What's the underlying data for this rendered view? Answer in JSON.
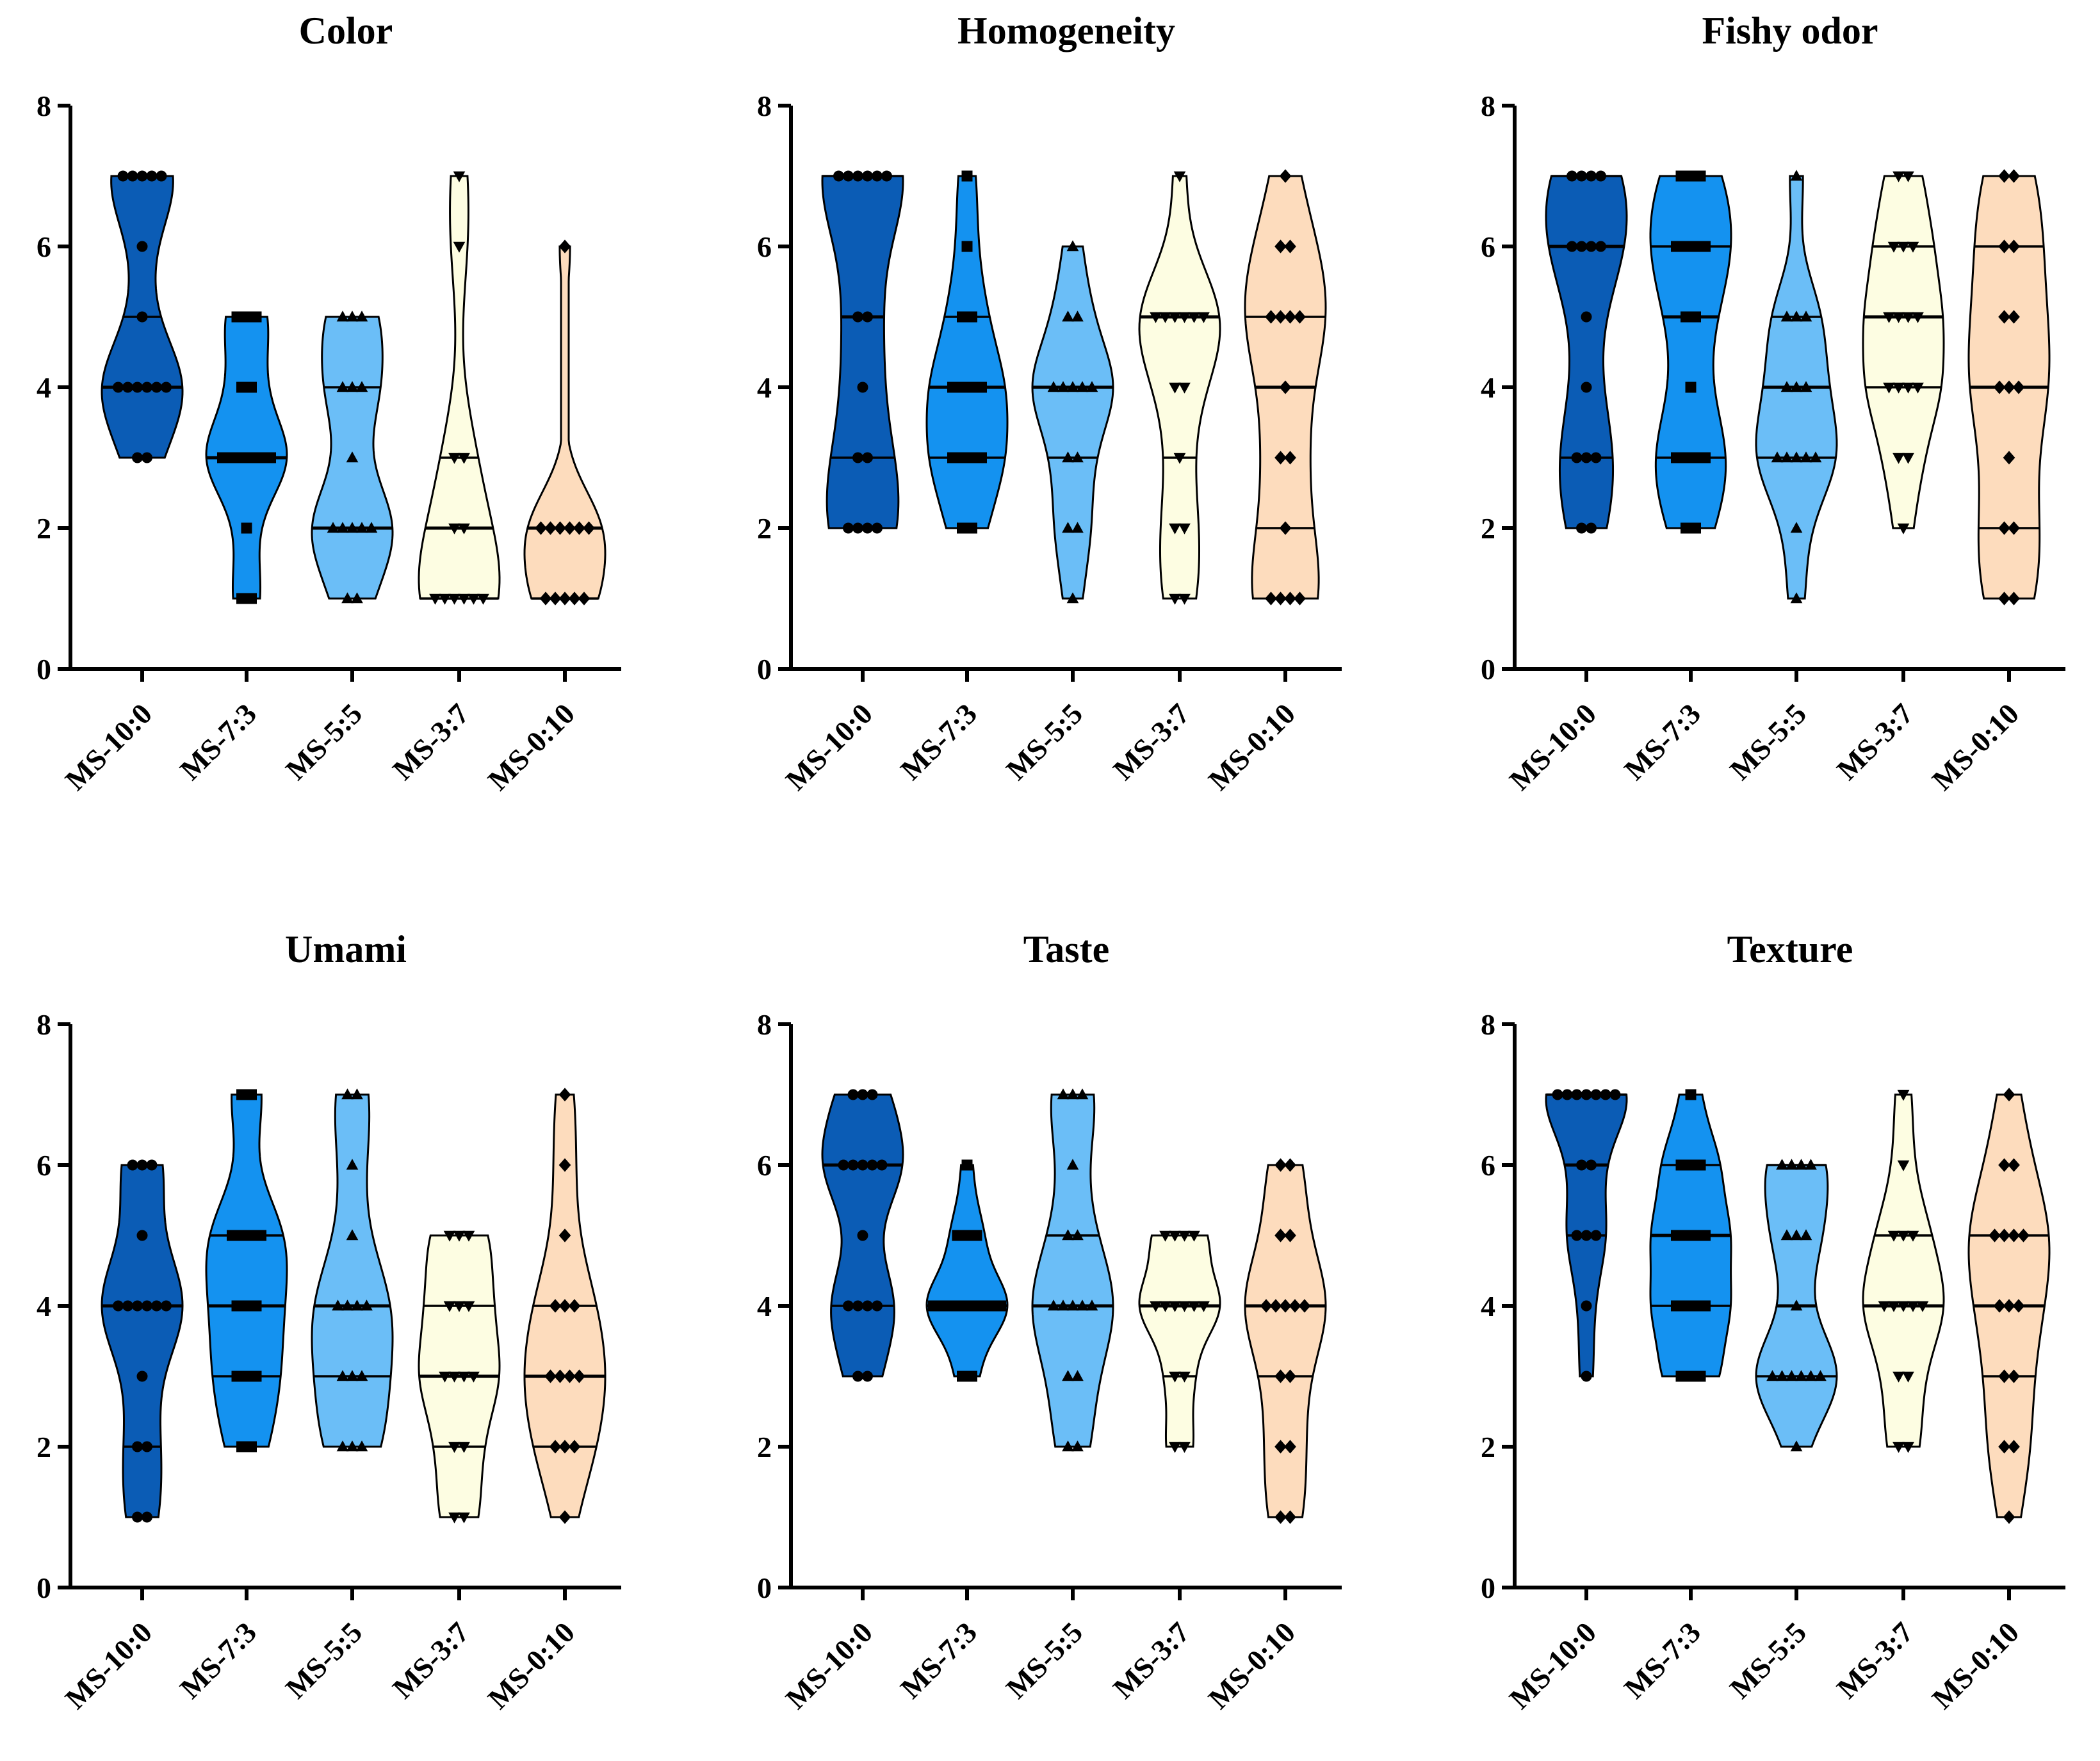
{
  "chart_data": {
    "type": "violin",
    "ylim": [
      0,
      8
    ],
    "yticks": [
      0,
      2,
      4,
      6,
      8
    ],
    "categories": [
      "MS-10:0",
      "MS-7:3",
      "MS-5:5",
      "MS-3:7",
      "MS-0:10"
    ],
    "colors": [
      "#0b5cb5",
      "#1492f0",
      "#6bbef7",
      "#fdfde2",
      "#fddcbd"
    ],
    "markers": [
      "circle",
      "square",
      "triangle-up",
      "triangle-down",
      "diamond"
    ],
    "panels": [
      {
        "title": "Color",
        "series": [
          {
            "name": "MS-10:0",
            "values": [
              7,
              7,
              7,
              7,
              7,
              6,
              5,
              4,
              4,
              4,
              4,
              4,
              4,
              3,
              3
            ],
            "q1": 4,
            "median": 4,
            "q3": 5
          },
          {
            "name": "MS-7:3",
            "values": [
              5,
              5,
              5,
              4,
              4,
              3,
              3,
              3,
              3,
              3,
              3,
              2,
              1,
              1
            ],
            "q1": 3,
            "median": 3,
            "q3": 3
          },
          {
            "name": "MS-5:5",
            "values": [
              5,
              5,
              5,
              4,
              4,
              4,
              3,
              2,
              2,
              2,
              2,
              2,
              1,
              1
            ],
            "q1": 2,
            "median": 2,
            "q3": 4
          },
          {
            "name": "MS-3:7",
            "values": [
              7,
              6,
              3,
              3,
              2,
              2,
              1,
              1,
              1,
              1,
              1,
              1
            ],
            "q1": 1,
            "median": 2,
            "q3": 3
          },
          {
            "name": "MS-0:10",
            "values": [
              6,
              2,
              2,
              2,
              2,
              2,
              2,
              1,
              1,
              1,
              1,
              1
            ],
            "q1": 1,
            "median": 2,
            "q3": 2
          }
        ]
      },
      {
        "title": "Homogeneity",
        "series": [
          {
            "name": "MS-10:0",
            "values": [
              7,
              7,
              7,
              7,
              7,
              7,
              5,
              5,
              4,
              3,
              3,
              2,
              2,
              2,
              2
            ],
            "q1": 3,
            "median": 5,
            "q3": 7
          },
          {
            "name": "MS-7:3",
            "values": [
              7,
              6,
              5,
              5,
              4,
              4,
              4,
              4,
              3,
              3,
              3,
              3,
              2,
              2
            ],
            "q1": 3,
            "median": 4,
            "q3": 5
          },
          {
            "name": "MS-5:5",
            "values": [
              6,
              5,
              5,
              4,
              4,
              4,
              4,
              4,
              3,
              3,
              2,
              2,
              1
            ],
            "q1": 3,
            "median": 4,
            "q3": 4
          },
          {
            "name": "MS-3:7",
            "values": [
              7,
              5,
              5,
              5,
              5,
              5,
              5,
              4,
              4,
              3,
              2,
              2,
              1,
              1
            ],
            "q1": 3,
            "median": 5,
            "q3": 5
          },
          {
            "name": "MS-0:10",
            "values": [
              7,
              6,
              6,
              5,
              5,
              5,
              5,
              4,
              3,
              3,
              2,
              1,
              1,
              1,
              1
            ],
            "q1": 2,
            "median": 4,
            "q3": 5
          }
        ]
      },
      {
        "title": "Fishy odor",
        "series": [
          {
            "name": "MS-10:0",
            "values": [
              7,
              7,
              7,
              7,
              6,
              6,
              6,
              6,
              5,
              4,
              3,
              3,
              3,
              2,
              2
            ],
            "q1": 3,
            "median": 6,
            "q3": 7
          },
          {
            "name": "MS-7:3",
            "values": [
              7,
              7,
              7,
              6,
              6,
              6,
              6,
              5,
              5,
              4,
              3,
              3,
              3,
              3,
              2,
              2
            ],
            "q1": 3,
            "median": 5,
            "q3": 6
          },
          {
            "name": "MS-5:5",
            "values": [
              7,
              5,
              5,
              5,
              4,
              4,
              4,
              3,
              3,
              3,
              3,
              3,
              2,
              1
            ],
            "q1": 3,
            "median": 4,
            "q3": 5
          },
          {
            "name": "MS-3:7",
            "values": [
              7,
              7,
              6,
              6,
              6,
              5,
              5,
              5,
              5,
              4,
              4,
              4,
              4,
              3,
              3,
              2
            ],
            "q1": 4,
            "median": 5,
            "q3": 6
          },
          {
            "name": "MS-0:10",
            "values": [
              7,
              7,
              6,
              6,
              5,
              5,
              4,
              4,
              4,
              3,
              2,
              2,
              1,
              1
            ],
            "q1": 2,
            "median": 4,
            "q3": 6
          }
        ]
      },
      {
        "title": "Umami",
        "series": [
          {
            "name": "MS-10:0",
            "values": [
              6,
              6,
              6,
              5,
              4,
              4,
              4,
              4,
              4,
              4,
              3,
              2,
              2,
              1,
              1
            ],
            "q1": 2,
            "median": 4,
            "q3": 4
          },
          {
            "name": "MS-7:3",
            "values": [
              7,
              7,
              5,
              5,
              5,
              5,
              4,
              4,
              4,
              3,
              3,
              3,
              2,
              2
            ],
            "q1": 3,
            "median": 4,
            "q3": 5
          },
          {
            "name": "MS-5:5",
            "values": [
              7,
              7,
              6,
              5,
              4,
              4,
              4,
              4,
              3,
              3,
              3,
              2,
              2,
              2
            ],
            "q1": 3,
            "median": 4,
            "q3": 4
          },
          {
            "name": "MS-3:7",
            "values": [
              5,
              5,
              5,
              4,
              4,
              4,
              3,
              3,
              3,
              3,
              2,
              2,
              1,
              1
            ],
            "q1": 2,
            "median": 3,
            "q3": 4
          },
          {
            "name": "MS-0:10",
            "values": [
              7,
              6,
              5,
              4,
              4,
              4,
              3,
              3,
              3,
              3,
              2,
              2,
              2,
              1
            ],
            "q1": 2,
            "median": 3,
            "q3": 4
          }
        ]
      },
      {
        "title": "Taste",
        "series": [
          {
            "name": "MS-10:0",
            "values": [
              7,
              7,
              7,
              6,
              6,
              6,
              6,
              6,
              5,
              4,
              4,
              4,
              4,
              3,
              3
            ],
            "q1": 4,
            "median": 6,
            "q3": 6
          },
          {
            "name": "MS-7:3",
            "values": [
              6,
              5,
              5,
              5,
              4,
              4,
              4,
              4,
              4,
              4,
              4,
              4,
              3,
              3
            ],
            "q1": 4,
            "median": 4,
            "q3": 4
          },
          {
            "name": "MS-5:5",
            "values": [
              7,
              7,
              7,
              6,
              5,
              5,
              4,
              4,
              4,
              4,
              4,
              3,
              3,
              2,
              2
            ],
            "q1": 4,
            "median": 4,
            "q3": 5
          },
          {
            "name": "MS-3:7",
            "values": [
              5,
              5,
              5,
              5,
              4,
              4,
              4,
              4,
              4,
              4,
              3,
              3,
              2,
              2
            ],
            "q1": 3,
            "median": 4,
            "q3": 4
          },
          {
            "name": "MS-0:10",
            "values": [
              6,
              6,
              5,
              5,
              4,
              4,
              4,
              4,
              4,
              3,
              3,
              2,
              2,
              1,
              1
            ],
            "q1": 3,
            "median": 4,
            "q3": 4
          }
        ]
      },
      {
        "title": "Texture",
        "series": [
          {
            "name": "MS-10:0",
            "values": [
              7,
              7,
              7,
              7,
              7,
              7,
              7,
              6,
              6,
              5,
              5,
              5,
              4,
              3
            ],
            "q1": 5,
            "median": 6,
            "q3": 7
          },
          {
            "name": "MS-7:3",
            "values": [
              7,
              6,
              6,
              6,
              5,
              5,
              5,
              5,
              4,
              4,
              4,
              4,
              3,
              3,
              3
            ],
            "q1": 4,
            "median": 5,
            "q3": 6
          },
          {
            "name": "MS-5:5",
            "values": [
              6,
              6,
              6,
              6,
              5,
              5,
              5,
              4,
              3,
              3,
              3,
              3,
              3,
              3,
              2
            ],
            "q1": 3,
            "median": 4,
            "q3": 6
          },
          {
            "name": "MS-3:7",
            "values": [
              7,
              6,
              5,
              5,
              5,
              4,
              4,
              4,
              4,
              4,
              3,
              3,
              2,
              2
            ],
            "q1": 4,
            "median": 4,
            "q3": 5
          },
          {
            "name": "MS-0:10",
            "values": [
              7,
              6,
              6,
              5,
              5,
              5,
              5,
              4,
              4,
              4,
              3,
              3,
              2,
              2,
              1
            ],
            "q1": 3,
            "median": 4,
            "q3": 5
          }
        ]
      }
    ]
  }
}
